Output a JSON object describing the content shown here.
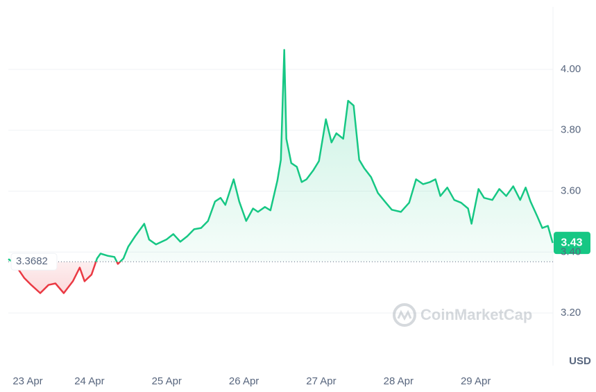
{
  "chart_data": {
    "type": "line",
    "x": [
      22.95,
      23.022,
      23.156,
      23.246,
      23.363,
      23.47,
      23.56,
      23.668,
      23.785,
      23.874,
      23.937,
      24.027,
      24.099,
      24.144,
      24.233,
      24.323,
      24.368,
      24.44,
      24.503,
      24.592,
      24.709,
      24.772,
      24.862,
      24.996,
      25.086,
      25.176,
      25.266,
      25.355,
      25.445,
      25.535,
      25.625,
      25.697,
      25.759,
      25.867,
      25.939,
      26.029,
      26.118,
      26.181,
      26.271,
      26.343,
      26.433,
      26.478,
      26.522,
      26.549,
      26.612,
      26.684,
      26.747,
      26.81,
      26.899,
      26.971,
      27.061,
      27.133,
      27.196,
      27.285,
      27.348,
      27.42,
      27.492,
      27.555,
      27.645,
      27.734,
      27.824,
      27.914,
      28.031,
      28.138,
      28.228,
      28.318,
      28.408,
      28.479,
      28.542,
      28.632,
      28.722,
      28.811,
      28.901,
      28.946,
      29.036,
      29.108,
      29.215,
      29.305,
      29.395,
      29.485,
      29.575,
      29.646,
      29.709,
      29.799,
      29.862,
      29.934,
      29.996
    ],
    "values": [
      3.377,
      3.365,
      3.315,
      3.292,
      3.265,
      3.292,
      3.297,
      3.265,
      3.304,
      3.349,
      3.304,
      3.326,
      3.379,
      3.395,
      3.388,
      3.384,
      3.361,
      3.379,
      3.418,
      3.452,
      3.493,
      3.441,
      3.425,
      3.441,
      3.459,
      3.434,
      3.452,
      3.475,
      3.479,
      3.502,
      3.566,
      3.578,
      3.555,
      3.639,
      3.566,
      3.502,
      3.543,
      3.532,
      3.548,
      3.537,
      3.635,
      3.703,
      4.064,
      3.772,
      3.692,
      3.68,
      3.63,
      3.639,
      3.669,
      3.699,
      3.836,
      3.76,
      3.79,
      3.772,
      3.897,
      3.881,
      3.703,
      3.676,
      3.646,
      3.594,
      3.566,
      3.539,
      3.532,
      3.562,
      3.639,
      3.623,
      3.63,
      3.639,
      3.584,
      3.612,
      3.571,
      3.562,
      3.543,
      3.493,
      3.607,
      3.578,
      3.571,
      3.607,
      3.584,
      3.616,
      3.571,
      3.612,
      3.566,
      3.516,
      3.479,
      3.486,
      3.43
    ],
    "color": "#16c784",
    "down_color": "#ea3943",
    "baseline": 3.3682,
    "xlim": [
      22.95,
      30.0
    ],
    "xticks": [
      {
        "value": 23,
        "label": "23 Apr"
      },
      {
        "value": 24,
        "label": "24 Apr"
      },
      {
        "value": 25,
        "label": "25 Apr"
      },
      {
        "value": 26,
        "label": "26 Apr"
      },
      {
        "value": 27,
        "label": "27 Apr"
      },
      {
        "value": 28,
        "label": "28 Apr"
      },
      {
        "value": 29,
        "label": "29 Apr"
      }
    ],
    "ylim": [
      3.027,
      4.205
    ],
    "yticks": [
      {
        "value": 3.2,
        "label": "3.20"
      },
      {
        "value": 3.4,
        "label": "3.40"
      },
      {
        "value": 3.6,
        "label": "3.60"
      },
      {
        "value": 3.8,
        "label": "3.80"
      },
      {
        "value": 4.0,
        "label": "4.00"
      }
    ],
    "y_label": "USD",
    "grid": true,
    "watermark": "CoinMarketCap"
  }
}
